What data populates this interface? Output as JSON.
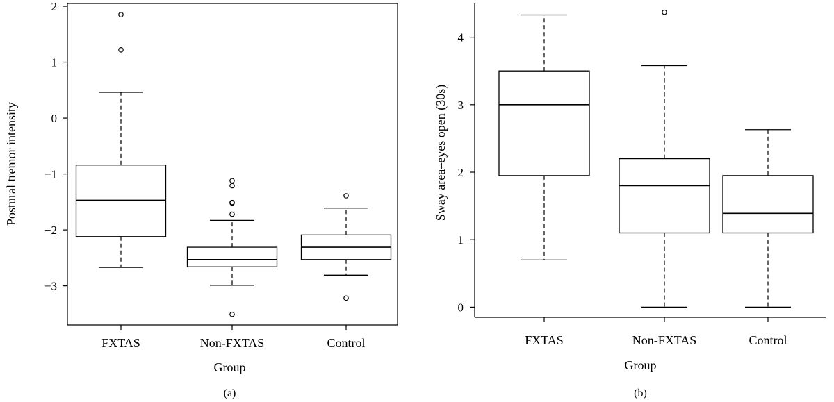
{
  "chart_data": [
    {
      "type": "box",
      "panel_label": "(a)",
      "xlabel": "Group",
      "ylabel": "Postural tremor intensity",
      "ylim": [
        -3.7,
        2.05
      ],
      "yticks": [
        -3,
        -2,
        -1,
        0,
        1,
        2
      ],
      "ytick_labels": [
        "−3",
        "−2",
        "−1",
        "0",
        "1",
        "2"
      ],
      "categories": [
        "FXTAS",
        "Non-FXTAS",
        "Control"
      ],
      "boxes": [
        {
          "category": "FXTAS",
          "whisker_low": -2.67,
          "q1": -2.12,
          "median": -1.47,
          "q3": -0.84,
          "whisker_high": 0.46,
          "outliers": [
            1.22,
            1.85
          ]
        },
        {
          "category": "Non-FXTAS",
          "whisker_low": -2.99,
          "q1": -2.66,
          "median": -2.53,
          "q3": -2.31,
          "whisker_high": -1.83,
          "outliers": [
            -1.12,
            -1.21,
            -1.51,
            -1.52,
            -1.72,
            -3.51
          ]
        },
        {
          "category": "Control",
          "whisker_low": -2.81,
          "q1": -2.53,
          "median": -2.31,
          "q3": -2.09,
          "whisker_high": -1.61,
          "outliers": [
            -1.39,
            -3.22
          ]
        }
      ]
    },
    {
      "type": "box",
      "panel_label": "(b)",
      "xlabel": "Group",
      "ylabel": "Sway area–eyes open (30s)",
      "ylim": [
        -0.15,
        4.5
      ],
      "yticks": [
        0,
        1,
        2,
        3,
        4
      ],
      "ytick_labels": [
        "0",
        "1",
        "2",
        "3",
        "4"
      ],
      "categories": [
        "FXTAS",
        "Non-FXTAS",
        "Control"
      ],
      "boxes": [
        {
          "category": "FXTAS",
          "whisker_low": 0.7,
          "q1": 1.95,
          "median": 3.0,
          "q3": 3.5,
          "whisker_high": 4.33,
          "outliers": []
        },
        {
          "category": "Non-FXTAS",
          "whisker_low": 0.0,
          "q1": 1.1,
          "median": 1.8,
          "q3": 2.2,
          "whisker_high": 3.58,
          "outliers": [
            4.37
          ]
        },
        {
          "category": "Control",
          "whisker_low": 0.0,
          "q1": 1.1,
          "median": 1.39,
          "q3": 1.95,
          "whisker_high": 2.63,
          "outliers": []
        }
      ]
    }
  ]
}
